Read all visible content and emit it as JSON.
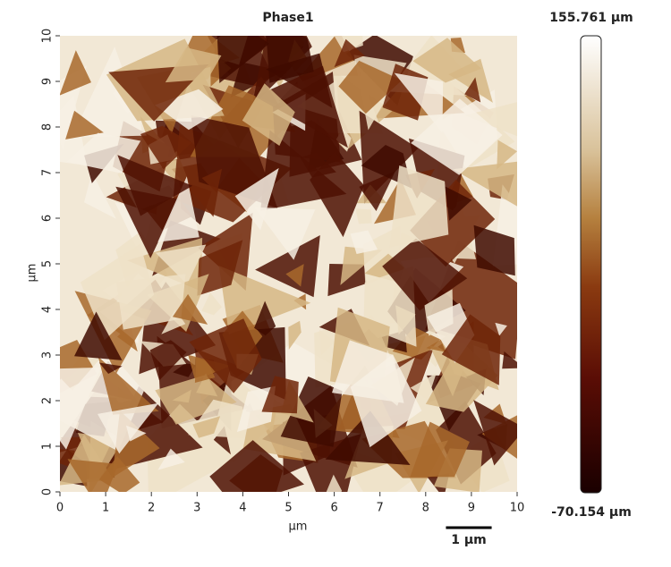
{
  "chart_data": {
    "type": "heatmap",
    "title": "Phase1",
    "x_label": "µm",
    "y_label": "µm",
    "xlim": [
      0,
      10
    ],
    "ylim": [
      0,
      10
    ],
    "xticks": [
      0,
      1,
      2,
      3,
      4,
      5,
      6,
      7,
      8,
      9,
      10
    ],
    "yticks": [
      0,
      1,
      2,
      3,
      4,
      5,
      6,
      7,
      8,
      9,
      10
    ],
    "colorbar": {
      "range": [
        {
          "value": -70.154,
          "label": "-70.154 µm"
        },
        {
          "value": 155.761,
          "label": "155.761 µm"
        }
      ]
    },
    "scale_bar": {
      "value": 1,
      "label": "1 µm"
    }
  }
}
